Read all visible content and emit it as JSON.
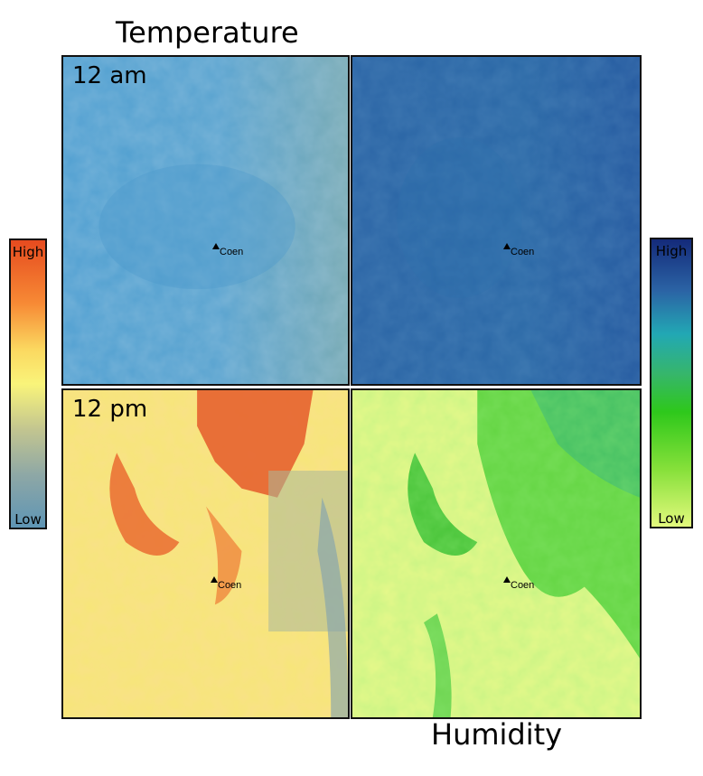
{
  "titles": {
    "temperature": "Temperature",
    "humidity": "Humidity"
  },
  "time_labels": {
    "am": "12 am",
    "pm": "12 pm"
  },
  "marker_label": "Coen",
  "legend": {
    "high": "High",
    "low": "Low"
  },
  "colors": {
    "temp_low": "#5e95b5",
    "temp_mid": "#f9f47a",
    "temp_high": "#e64b1f",
    "hum_low": "#e3f97d",
    "hum_mid": "#2ec81b",
    "hum_high": "#142a7a"
  }
}
